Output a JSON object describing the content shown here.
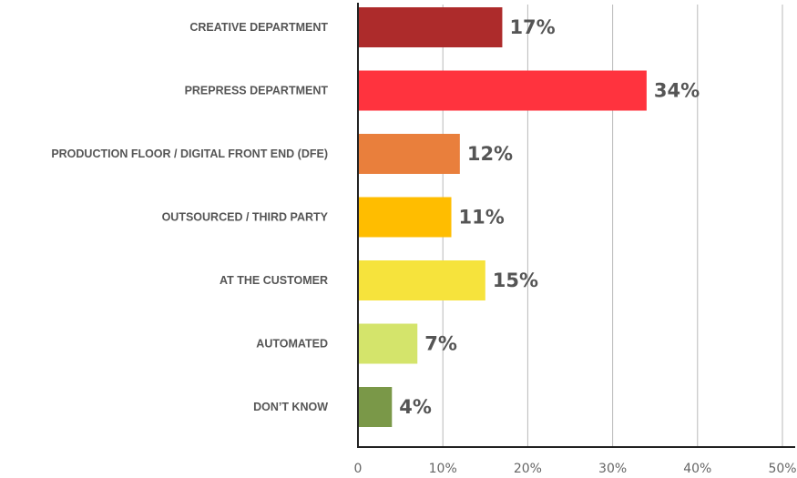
{
  "chart_data": {
    "type": "bar",
    "orientation": "horizontal",
    "categories": [
      "CREATIVE DEPARTMENT",
      "PREPRESS DEPARTMENT",
      "PRODUCTION FLOOR / DIGITAL FRONT END (DFE)",
      "OUTSOURCED / THIRD PARTY",
      "AT THE CUSTOMER",
      "AUTOMATED",
      "DON’T KNOW"
    ],
    "values": [
      17,
      34,
      12,
      11,
      15,
      7,
      4
    ],
    "value_labels": [
      "17%",
      "34%",
      "12%",
      "11%",
      "15%",
      "7%",
      "4%"
    ],
    "colors": [
      "#ad2b2b",
      "#ff333e",
      "#e97f3c",
      "#ffbd00",
      "#f6e33c",
      "#d4e46b",
      "#7a9848"
    ],
    "title": "",
    "xlabel": "",
    "ylabel": "",
    "xlim": [
      0,
      50
    ],
    "xticks": [
      0,
      10,
      20,
      30,
      40,
      50
    ],
    "xtick_labels": [
      "0",
      "10%",
      "20%",
      "30%",
      "40%",
      "50%"
    ],
    "grid": true,
    "legend": "none"
  }
}
